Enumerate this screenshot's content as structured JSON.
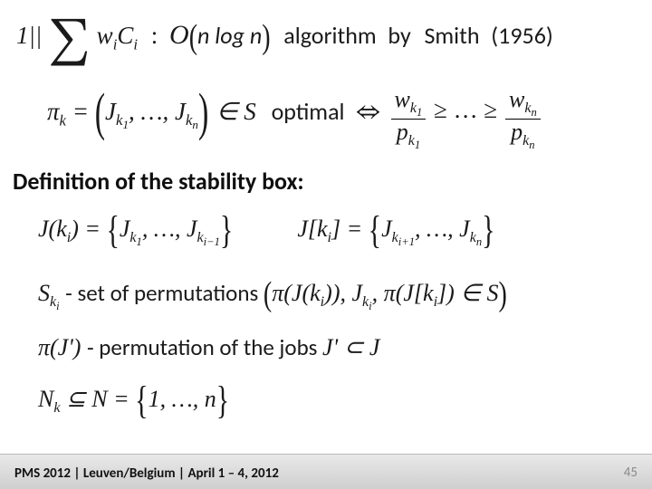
{
  "row1": {
    "prefix": "1||",
    "sum_body_html": "w<span class='sub'>i</span>C<span class='sub'>i</span>",
    "colon": ":",
    "O": "O",
    "complexity_inner": "n log n",
    "word_algorithm": "algorithm",
    "by": "by",
    "name": "Smith",
    "year": "(1956)"
  },
  "row2": {
    "pi_k_html": "π<span class='sub'>k</span> =",
    "tuple_html": "J<span class='sub'>k<span class='subsub'>1</span></span>, …, J<span class='sub'>k<span class='subsub'>n</span></span>",
    "in_S_html": "∈ S",
    "optimal": "optimal",
    "frac1_num_html": "w<span class='sub'>k<span class='subsub'>1</span></span>",
    "frac1_den_html": "p<span class='sub'>k<span class='subsub'>1</span></span>",
    "ge_dots": "≥ … ≥",
    "fracn_num_html": "w<span class='sub'>k<span class='subsub'>n</span></span>",
    "fracn_den_html": "p<span class='sub'>k<span class='subsub'>n</span></span>"
  },
  "heading": "Definition of the stability box:",
  "row4": {
    "lhs1_html": "J(k<span class='sub'>i</span>) =",
    "set1_html": "J<span class='sub'>k<span class='subsub'>1</span></span>, …, J<span class='sub'>k<span class='subsub'>i−1</span></span>",
    "lhs2_html": "J[k<span class='sub'>i</span>] =",
    "set2_html": "J<span class='sub'>k<span class='subsub'>i+1</span></span>, …, J<span class='sub'>k<span class='subsub'>n</span></span>"
  },
  "row5": {
    "S_html": "S<span class='sub'>k<span class='subsub'>i</span></span>",
    "words": " - set of permutations ",
    "inside_html": "π(J(k<span class='sub'>i</span>)), J<span class='sub'>k<span class='subsub'>i</span></span>, π(J[k<span class='sub'>i</span>]) ∈ S"
  },
  "row6": {
    "pi_html": "π(J')",
    "words": " - permutation of the jobs ",
    "tail_html": "J' ⊂ J"
  },
  "row7": {
    "lhs_html": "N<span class='sub'>k</span> ⊆ N =",
    "set_html": "1, …, n"
  },
  "footer": {
    "text": "PMS 2012 | Leuven/Belgium | April 1 – 4, 2012",
    "page": "45"
  },
  "style": {
    "background": "#ffffff",
    "footer_bg_from": "#e9e9e9",
    "footer_bg_to": "#cfcfcf",
    "pagenum_color": "#8a8a8a",
    "text_color": "#1a1a1a",
    "heading_fontsize_pt": 20,
    "body_fontsize_pt": 20,
    "calibri_fontsize_pt": 20
  }
}
